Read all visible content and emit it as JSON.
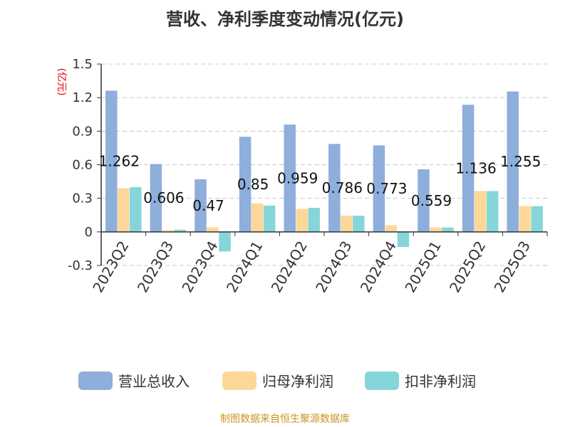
{
  "chart_data": {
    "type": "bar",
    "title": "营收、净利季度变动情况(亿元)",
    "ylabel": "(亿元)",
    "xlabel": "",
    "ylim": [
      -0.3,
      1.5
    ],
    "yticks": [
      {
        "value": 1.5,
        "label": "1.5"
      },
      {
        "value": 1.2,
        "label": "1.2"
      },
      {
        "value": 0.9,
        "label": "0.9"
      },
      {
        "value": 0.6,
        "label": "0.6"
      },
      {
        "value": 0.3,
        "label": "0.3"
      },
      {
        "value": 0,
        "label": "0"
      },
      {
        "value": -0.3,
        "label": "-0.3"
      }
    ],
    "grid": true,
    "legend": "bottom",
    "categories": [
      "2023Q2",
      "2023Q3",
      "2023Q4",
      "2024Q1",
      "2024Q2",
      "2024Q3",
      "2024Q4",
      "2025Q1",
      "2025Q2",
      "2025Q3"
    ],
    "series": [
      {
        "name": "营业总收入",
        "color": "#8eaedc",
        "values": [
          1.262,
          0.606,
          0.47,
          0.85,
          0.959,
          0.786,
          0.773,
          0.559,
          1.136,
          1.255
        ],
        "labels": [
          "1.262",
          "0.606",
          "0.47",
          "0.85",
          "0.959",
          "0.786",
          "0.773",
          "0.559",
          "1.136",
          "1.255"
        ]
      },
      {
        "name": "归母净利润",
        "color": "#fdd79a",
        "values": [
          0.39,
          0.015,
          0.04,
          0.255,
          0.205,
          0.145,
          0.06,
          0.04,
          0.365,
          0.23
        ]
      },
      {
        "name": "扣非净利润",
        "color": "#86d6d9",
        "values": [
          0.4,
          0.02,
          -0.175,
          0.235,
          0.215,
          0.145,
          -0.135,
          0.04,
          0.365,
          0.23
        ]
      }
    ],
    "source": "制图数据来自恒生聚源数据库"
  }
}
